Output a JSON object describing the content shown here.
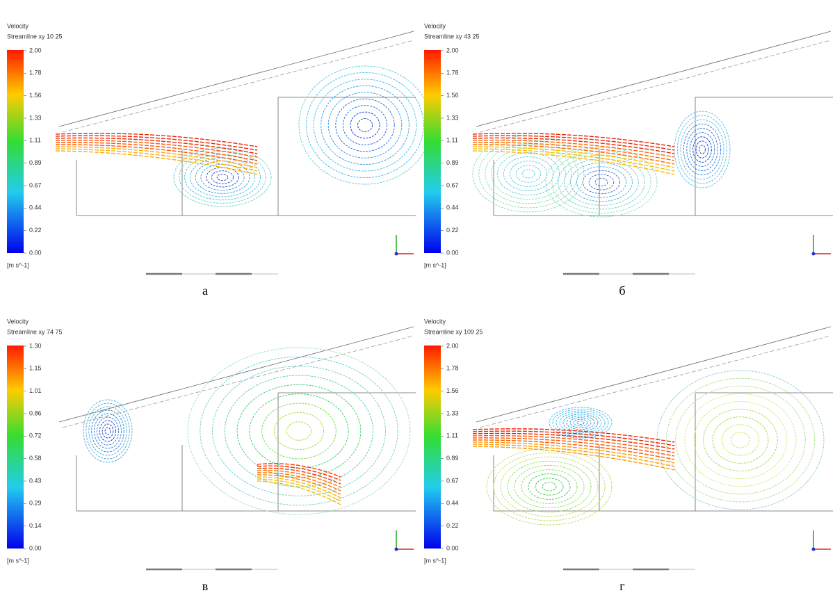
{
  "panels": [
    {
      "title": "Velocity",
      "subtitle": "Streamline xy 10 25",
      "scale_labels": [
        "2.00",
        "1.78",
        "1.56",
        "1.33",
        "1.11",
        "0.89",
        "0.67",
        "0.44",
        "0.22",
        "0.00"
      ],
      "unit": "[m s^-1]",
      "caption": "а"
    },
    {
      "title": "Velocity",
      "subtitle": "Streamline xy 43 25",
      "scale_labels": [
        "2.00",
        "1.78",
        "1.56",
        "1.33",
        "1.11",
        "0.89",
        "0.67",
        "0.44",
        "0.22",
        "0.00"
      ],
      "unit": "[m s^-1]",
      "caption": "б"
    },
    {
      "title": "Velocity",
      "subtitle": "Streamline xy 74 75",
      "scale_labels": [
        "1.30",
        "1.15",
        "1.01",
        "0.86",
        "0.72",
        "0.58",
        "0.43",
        "0.29",
        "0.14",
        "0.00"
      ],
      "unit": "[m s^-1]",
      "caption": "в"
    },
    {
      "title": "Velocity",
      "subtitle": "Streamline xy 109 25",
      "scale_labels": [
        "2.00",
        "1.78",
        "1.56",
        "1.33",
        "1.11",
        "0.89",
        "0.67",
        "0.44",
        "0.22",
        "0.00"
      ],
      "unit": "[m s^-1]",
      "caption": "г"
    }
  ]
}
